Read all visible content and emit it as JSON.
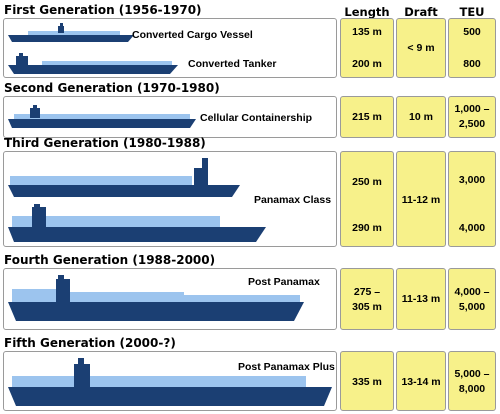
{
  "columns": {
    "length": "Length",
    "draft": "Draft",
    "teu": "TEU"
  },
  "generations": [
    {
      "title": "First Generation (1956-1970)",
      "ships": [
        {
          "label": "Converted Cargo Vessel",
          "length": "135 m",
          "teu": "500"
        },
        {
          "label": "Converted Tanker",
          "length": "200 m",
          "teu": "800"
        }
      ],
      "draft": "< 9 m"
    },
    {
      "title": "Second Generation (1970-1980)",
      "ships": [
        {
          "label": "Cellular Containership",
          "length": "215 m",
          "teu_line1": "1,000 –",
          "teu_line2": "2,500"
        }
      ],
      "draft": "10 m"
    },
    {
      "title": "Third Generation (1980-1988)",
      "class_label": "Panamax Class",
      "ships": [
        {
          "length": "250 m",
          "teu": "3,000"
        },
        {
          "length": "290 m",
          "teu": "4,000"
        }
      ],
      "draft": "11-12 m"
    },
    {
      "title": "Fourth Generation (1988-2000)",
      "class_label": "Post Panamax",
      "length_line1": "275 –",
      "length_line2": "305 m",
      "draft": "11-13 m",
      "teu_line1": "4,000 –",
      "teu_line2": "5,000"
    },
    {
      "title": "Fifth Generation (2000-?)",
      "class_label": "Post Panamax Plus",
      "length": "335 m",
      "draft": "13-14 m",
      "teu_line1": "5,000 –",
      "teu_line2": "8,000"
    }
  ],
  "colors": {
    "hull": "#1b3f73",
    "cargo": "#9cc4ee",
    "cell_fill": "#f7f18a",
    "border": "#9a9a9a"
  }
}
